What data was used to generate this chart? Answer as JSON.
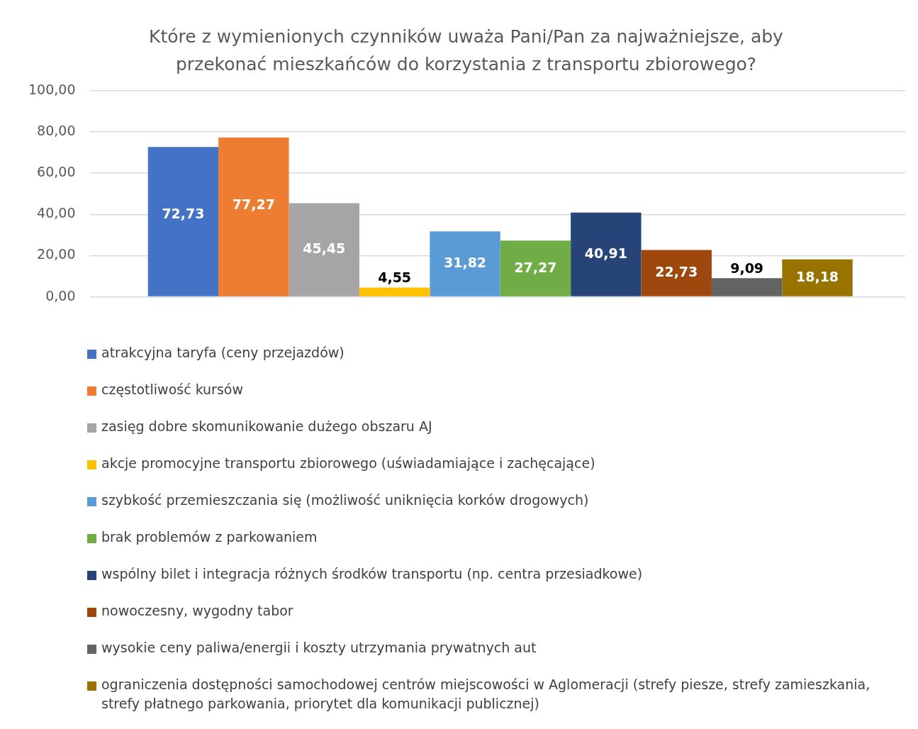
{
  "chart_data": {
    "type": "bar",
    "title": "Które z wymienionych czynników uważa Pani/Pan za najważniejsze, aby przekonać mieszkańców do korzystania z transportu zbiorowego?",
    "categories": [
      null
    ],
    "series": [
      {
        "name": "atrakcyjna taryfa (ceny przejazdów)",
        "color": "#4472c4",
        "values": [
          72.73
        ],
        "value_labels": [
          "72,73"
        ]
      },
      {
        "name": "częstotliwość kursów",
        "color": "#ed7d31",
        "values": [
          77.27
        ],
        "value_labels": [
          "77,27"
        ]
      },
      {
        "name": "zasięg dobre skomunikowanie dużego obszaru AJ",
        "color": "#a5a5a5",
        "values": [
          45.45
        ],
        "value_labels": [
          "45,45"
        ]
      },
      {
        "name": "akcje promocyjne transportu zbiorowego (uświadamiające i zachęcające)",
        "color": "#ffc000",
        "values": [
          4.55
        ],
        "value_labels": [
          "4,55"
        ]
      },
      {
        "name": "szybkość przemieszczania się (możliwość uniknięcia korków drogowych)",
        "color": "#5b9bd5",
        "values": [
          31.82
        ],
        "value_labels": [
          "31,82"
        ]
      },
      {
        "name": "brak problemów z parkowaniem",
        "color": "#70ad47",
        "values": [
          27.27
        ],
        "value_labels": [
          "27,27"
        ]
      },
      {
        "name": "wspólny bilet i integracja różnych środków transportu (np. centra przesiadkowe)",
        "color": "#264478",
        "values": [
          40.91
        ],
        "value_labels": [
          "40,91"
        ]
      },
      {
        "name": "nowoczesny, wygodny tabor",
        "color": "#9e480e",
        "values": [
          22.73
        ],
        "value_labels": [
          "22,73"
        ]
      },
      {
        "name": "wysokie ceny paliwa/energii i koszty utrzymania prywatnych aut",
        "color": "#636363",
        "values": [
          9.09
        ],
        "value_labels": [
          "9,09"
        ]
      },
      {
        "name": "ograniczenia dostępności samochodowej centrów miejscowości w Aglomeracji (strefy piesze, strefy zamieszkania, strefy płatnego parkowania, priorytet dla komunikacji publicznej)",
        "color": "#997300",
        "values": [
          18.18
        ],
        "value_labels": [
          "18,18"
        ]
      }
    ],
    "ylim": [
      0,
      100
    ],
    "yticks": [
      {
        "value": 0,
        "label": "0,00"
      },
      {
        "value": 20,
        "label": "20,00"
      },
      {
        "value": 40,
        "label": "40,00"
      },
      {
        "value": 60,
        "label": "60,00"
      },
      {
        "value": 80,
        "label": "80,00"
      },
      {
        "value": 100,
        "label": "100,00"
      }
    ],
    "grid": "y",
    "legend": "bottom"
  }
}
